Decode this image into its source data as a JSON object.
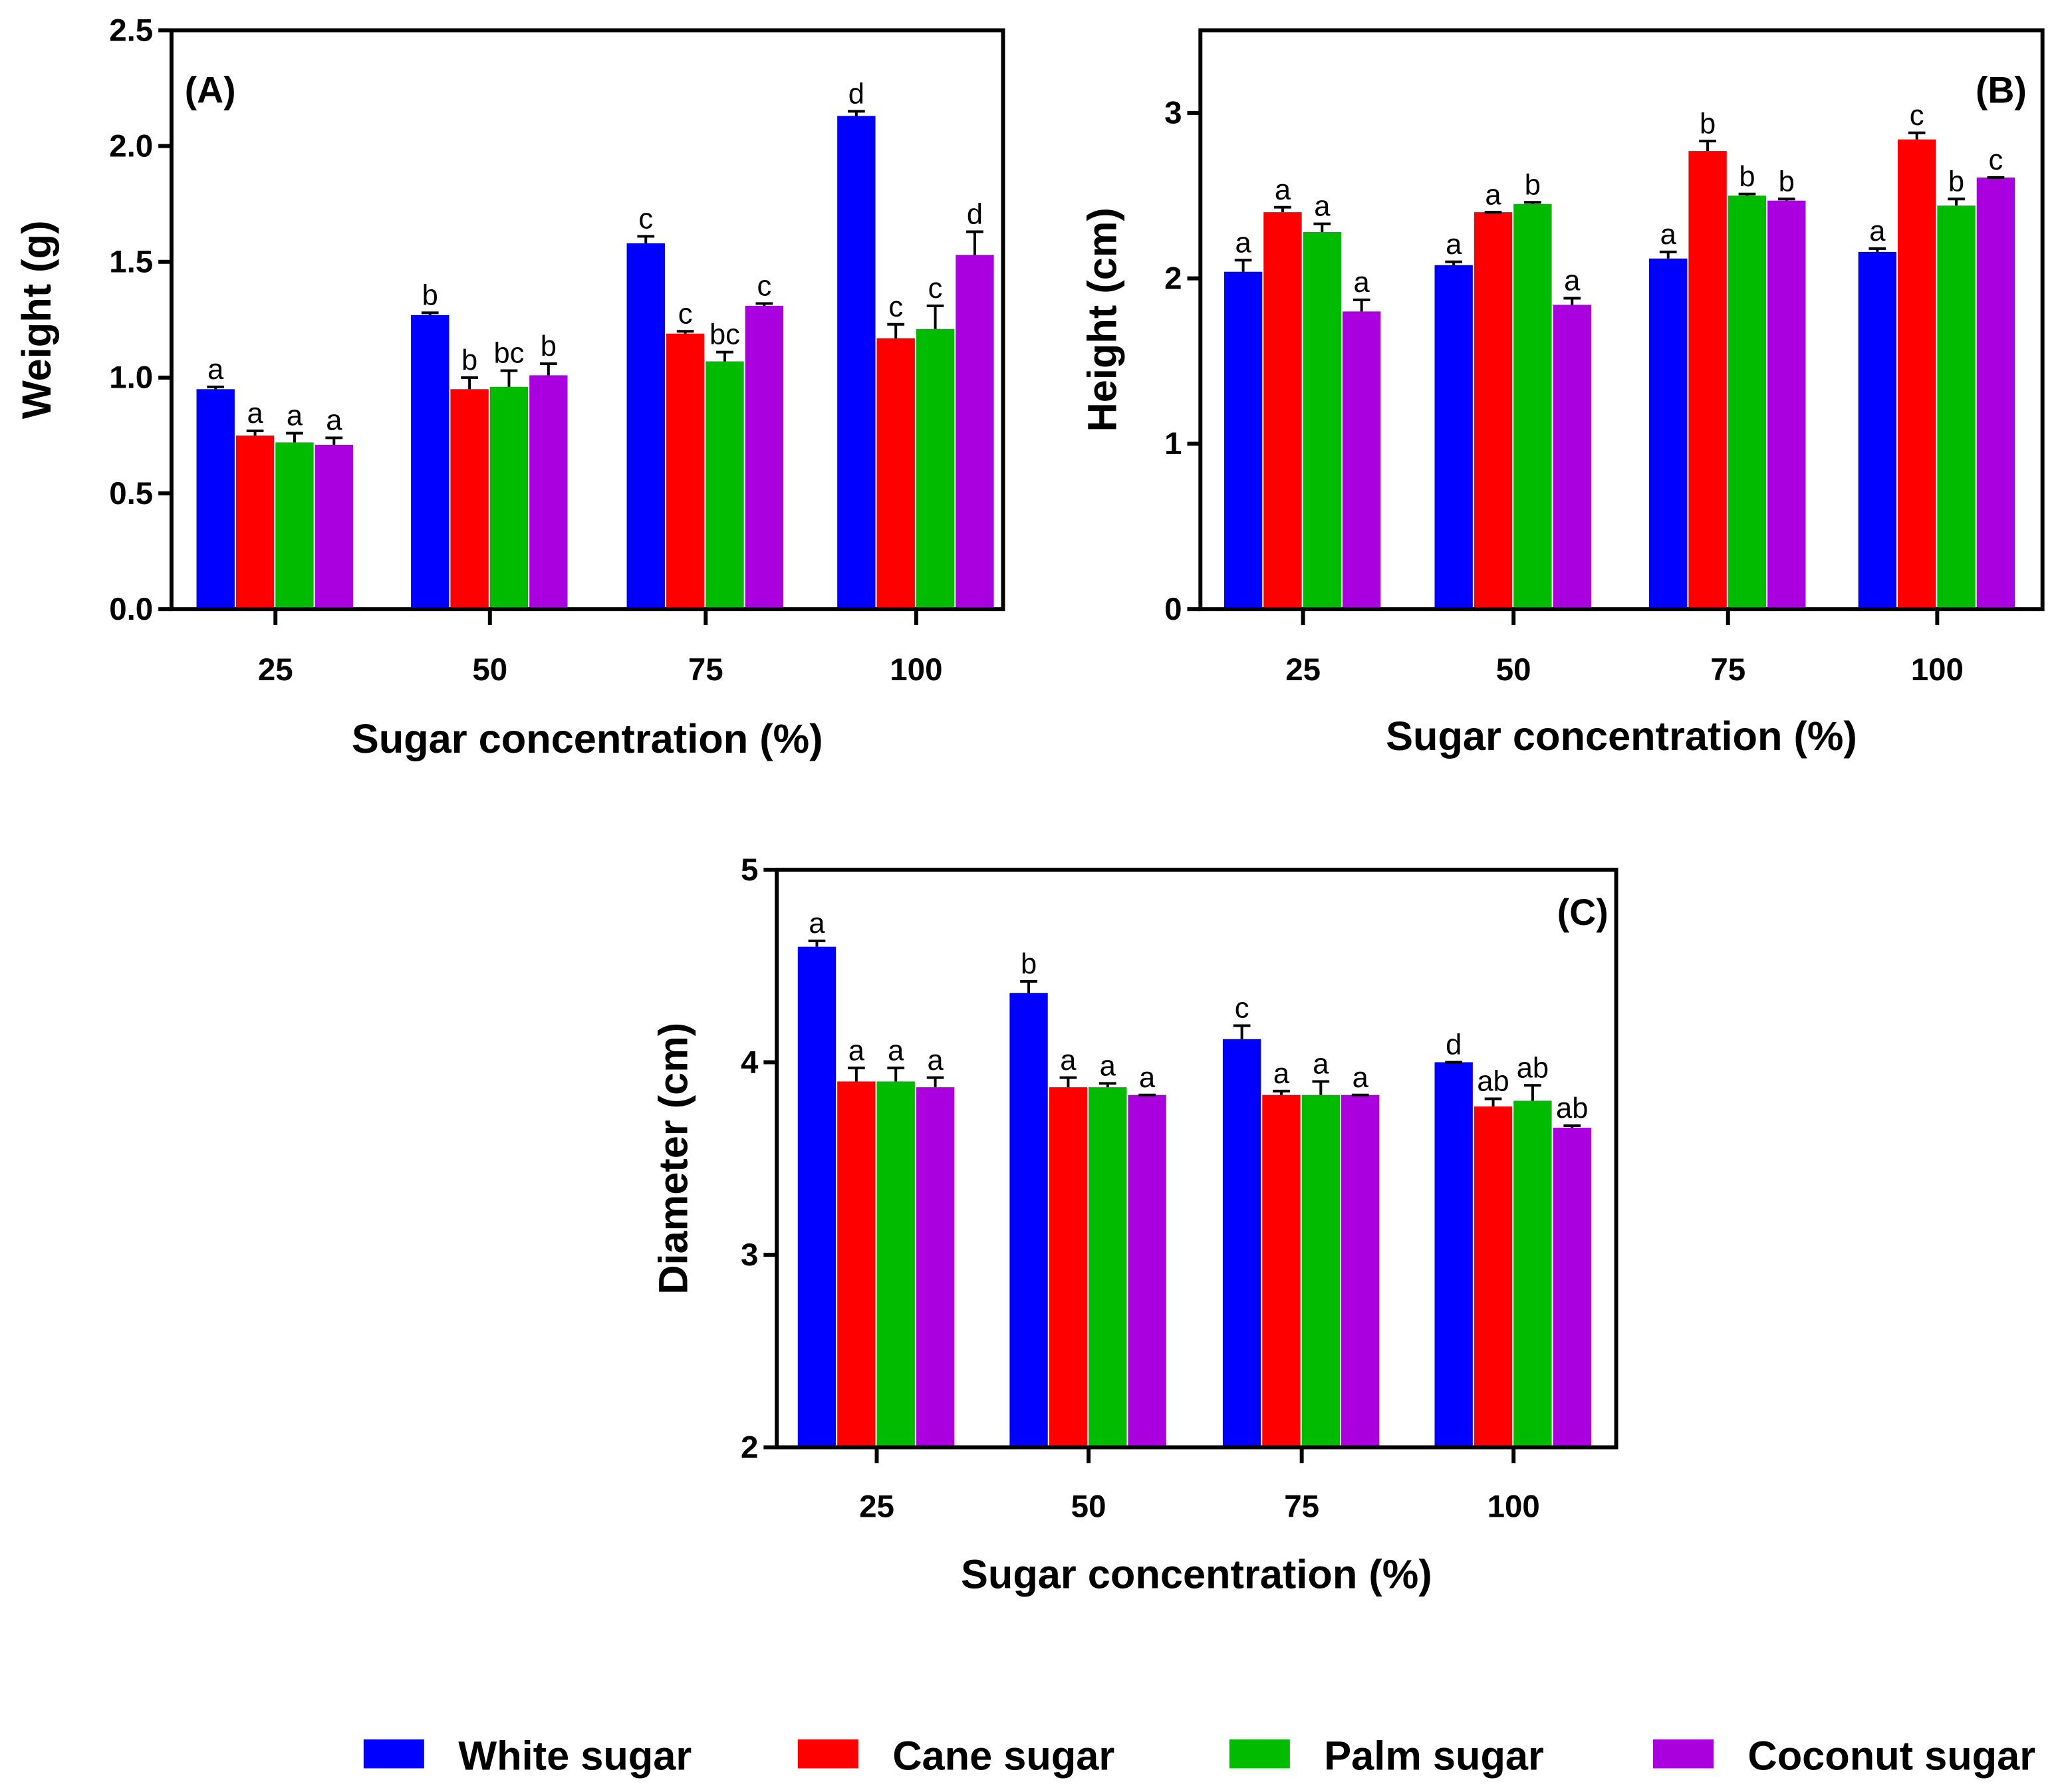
{
  "chart_data": [
    {
      "type": "bar",
      "panel": "(A)",
      "xlabel": "Sugar concentration (%)",
      "ylabel": "Weight (g)",
      "ylim": [
        0,
        2.5
      ],
      "yticks": [
        "0.0",
        "0.5",
        "1.0",
        "1.5",
        "2.0",
        "2.5"
      ],
      "categories": [
        "25",
        "50",
        "75",
        "100"
      ],
      "series": [
        {
          "name": "White sugar",
          "values": [
            0.95,
            1.27,
            1.58,
            2.13
          ],
          "errors": [
            0.01,
            0.01,
            0.03,
            0.02
          ],
          "letters": [
            "a",
            "b",
            "c",
            "d"
          ]
        },
        {
          "name": "Cane sugar",
          "values": [
            0.75,
            0.95,
            1.19,
            1.17
          ],
          "errors": [
            0.02,
            0.05,
            0.01,
            0.06
          ],
          "letters": [
            "a",
            "b",
            "c",
            "c"
          ]
        },
        {
          "name": "Palm sugar",
          "values": [
            0.72,
            0.96,
            1.07,
            1.21
          ],
          "errors": [
            0.04,
            0.07,
            0.04,
            0.1
          ],
          "letters": [
            "a",
            "bc",
            "bc",
            "c"
          ]
        },
        {
          "name": "Coconut sugar",
          "values": [
            0.71,
            1.01,
            1.31,
            1.53
          ],
          "errors": [
            0.03,
            0.05,
            0.01,
            0.1
          ],
          "letters": [
            "a",
            "b",
            "c",
            "d"
          ]
        }
      ]
    },
    {
      "type": "bar",
      "panel": "(B)",
      "xlabel": "Sugar concentration (%)",
      "ylabel": "Height (cm)",
      "ylim": [
        0,
        3.5
      ],
      "yticks": [
        "0",
        "1",
        "2",
        "3"
      ],
      "categories": [
        "25",
        "50",
        "75",
        "100"
      ],
      "series": [
        {
          "name": "White sugar",
          "values": [
            2.04,
            2.08,
            2.12,
            2.16
          ],
          "errors": [
            0.07,
            0.02,
            0.04,
            0.02
          ],
          "letters": [
            "a",
            "a",
            "a",
            "a"
          ]
        },
        {
          "name": "Cane sugar",
          "values": [
            2.4,
            2.4,
            2.77,
            2.84
          ],
          "errors": [
            0.03,
            0.0,
            0.06,
            0.04
          ],
          "letters": [
            "a",
            "a",
            "b",
            "c"
          ]
        },
        {
          "name": "Palm sugar",
          "values": [
            2.28,
            2.45,
            2.5,
            2.44
          ],
          "errors": [
            0.05,
            0.01,
            0.01,
            0.04
          ],
          "letters": [
            "a",
            "b",
            "b",
            "b"
          ]
        },
        {
          "name": "Coconut sugar",
          "values": [
            1.8,
            1.84,
            2.47,
            2.61
          ],
          "errors": [
            0.07,
            0.04,
            0.01,
            0.0
          ],
          "letters": [
            "a",
            "a",
            "b",
            "c"
          ]
        }
      ]
    },
    {
      "type": "bar",
      "panel": "(C)",
      "xlabel": "Sugar concentration (%)",
      "ylabel": "Diameter (cm)",
      "ylim": [
        2,
        5
      ],
      "yticks": [
        "2",
        "3",
        "4",
        "5"
      ],
      "categories": [
        "25",
        "50",
        "75",
        "100"
      ],
      "series": [
        {
          "name": "White sugar",
          "values": [
            4.6,
            4.36,
            4.12,
            4.0
          ],
          "errors": [
            0.03,
            0.06,
            0.07,
            0.0
          ],
          "letters": [
            "a",
            "b",
            "c",
            "d"
          ]
        },
        {
          "name": "Cane sugar",
          "values": [
            3.9,
            3.87,
            3.83,
            3.77
          ],
          "errors": [
            0.07,
            0.05,
            0.02,
            0.04
          ],
          "letters": [
            "a",
            "a",
            "a",
            "ab"
          ]
        },
        {
          "name": "Palm sugar",
          "values": [
            3.9,
            3.87,
            3.83,
            3.8
          ],
          "errors": [
            0.07,
            0.02,
            0.07,
            0.08
          ],
          "letters": [
            "a",
            "a",
            "a",
            "ab"
          ]
        },
        {
          "name": "Coconut sugar",
          "values": [
            3.87,
            3.83,
            3.83,
            3.66
          ],
          "errors": [
            0.05,
            0.0,
            0.0,
            0.01
          ],
          "letters": [
            "a",
            "a",
            "a",
            "ab"
          ]
        }
      ]
    }
  ],
  "legend": {
    "placement": "bottom",
    "items": [
      {
        "label": "White sugar",
        "color": "#0000ff"
      },
      {
        "label": "Cane sugar",
        "color": "#ff0000"
      },
      {
        "label": "Palm sugar",
        "color": "#00bb00"
      },
      {
        "label": "Coconut sugar",
        "color": "#aa00e0"
      }
    ]
  }
}
